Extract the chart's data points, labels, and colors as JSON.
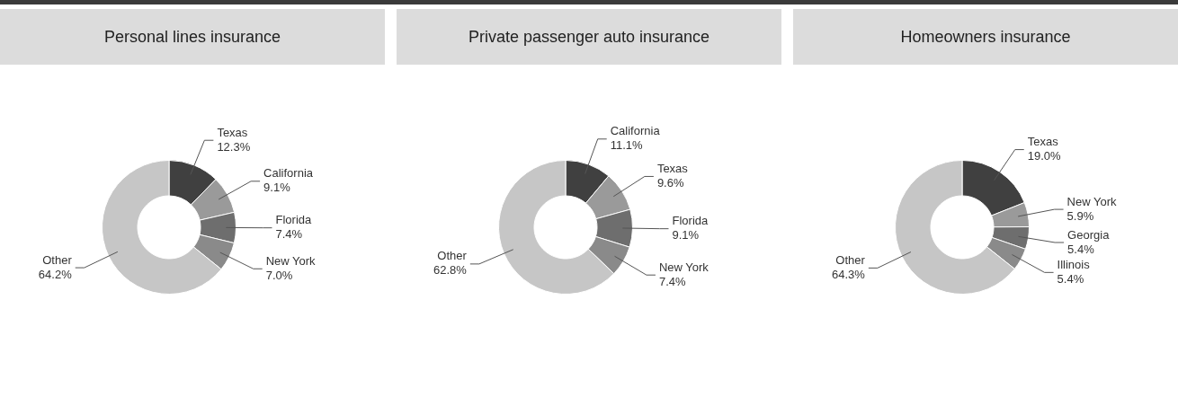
{
  "chart_data": [
    {
      "type": "donut",
      "title": "Personal lines insurance",
      "categories": [
        "Texas",
        "California",
        "Florida",
        "New York",
        "Other"
      ],
      "values": [
        12.3,
        9.1,
        7.4,
        7.0,
        64.2
      ],
      "value_labels": [
        "12.3%",
        "9.1%",
        "7.4%",
        "7.0%",
        "64.2%"
      ],
      "colors": [
        "#404040",
        "#9a9a9a",
        "#6e6e6e",
        "#8a8a8a",
        "#c6c6c6"
      ]
    },
    {
      "type": "donut",
      "title": "Private passenger auto insurance",
      "categories": [
        "California",
        "Texas",
        "Florida",
        "New York",
        "Other"
      ],
      "values": [
        11.1,
        9.6,
        9.1,
        7.4,
        62.8
      ],
      "value_labels": [
        "11.1%",
        "9.6%",
        "9.1%",
        "7.4%",
        "62.8%"
      ],
      "colors": [
        "#404040",
        "#9a9a9a",
        "#6e6e6e",
        "#8a8a8a",
        "#c6c6c6"
      ]
    },
    {
      "type": "donut",
      "title": "Homeowners insurance",
      "categories": [
        "Texas",
        "New York",
        "Georgia",
        "Illinois",
        "Other"
      ],
      "values": [
        19.0,
        5.9,
        5.4,
        5.4,
        64.3
      ],
      "value_labels": [
        "19.0%",
        "5.9%",
        "5.4%",
        "5.4%",
        "64.3%"
      ],
      "colors": [
        "#404040",
        "#9a9a9a",
        "#6e6e6e",
        "#8a8a8a",
        "#c6c6c6"
      ]
    }
  ]
}
